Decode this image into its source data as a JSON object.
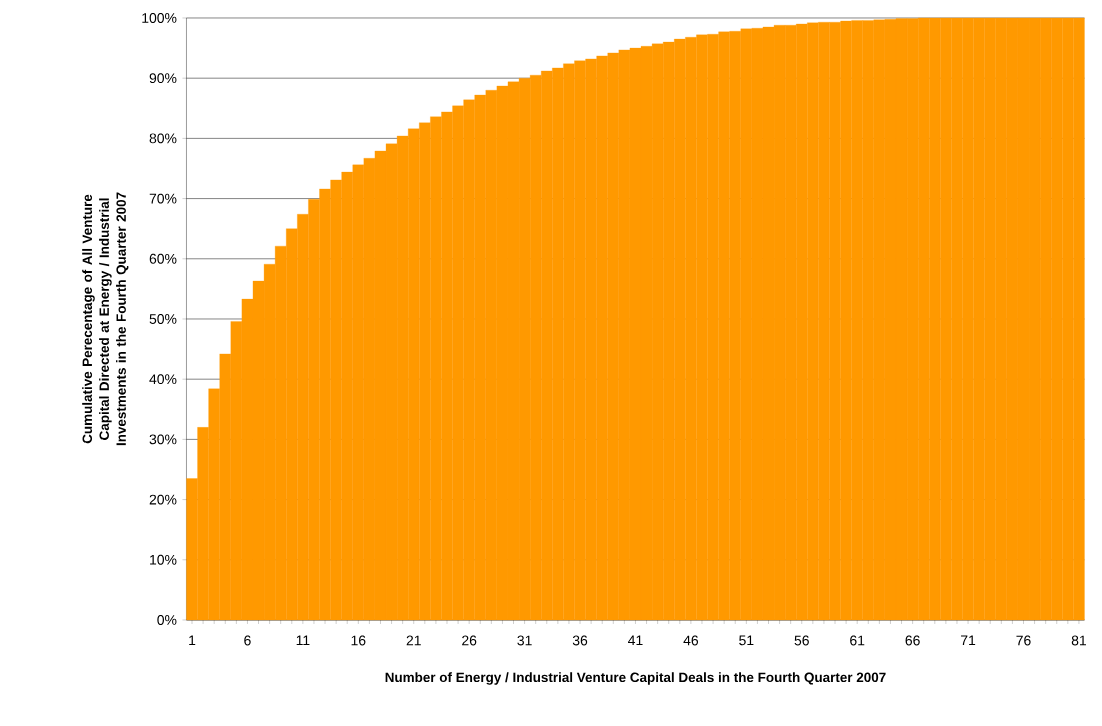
{
  "chart_data": {
    "type": "bar",
    "xlabel": "Number of Energy / Industrial Venture Capital Deals in the Fourth Quarter 2007",
    "ylabel": "Cumulative Perecentage of All Venture Capital Directed at Energy / Industrial Investments in the Fourth Quarter 2007",
    "categories": [
      "1",
      null,
      null,
      null,
      null,
      "6",
      null,
      null,
      null,
      null,
      "11",
      null,
      null,
      null,
      null,
      "16",
      null,
      null,
      null,
      null,
      "21",
      null,
      null,
      null,
      null,
      "26",
      null,
      null,
      null,
      null,
      "31",
      null,
      null,
      null,
      null,
      "36",
      null,
      null,
      null,
      null,
      "41",
      null,
      null,
      null,
      null,
      "46",
      null,
      null,
      null,
      null,
      "51",
      null,
      null,
      null,
      null,
      "56",
      null,
      null,
      null,
      null,
      "61",
      null,
      null,
      null,
      null,
      "66",
      null,
      null,
      null,
      null,
      "71",
      null,
      null,
      null,
      null,
      "76",
      null,
      null,
      null,
      null,
      "81"
    ],
    "values": [
      23.5,
      32.0,
      38.4,
      44.2,
      49.6,
      53.3,
      56.3,
      59.1,
      62.1,
      65.0,
      67.4,
      69.9,
      71.6,
      73.1,
      74.4,
      75.6,
      76.7,
      77.9,
      79.1,
      80.4,
      81.6,
      82.6,
      83.6,
      84.4,
      85.4,
      86.4,
      87.2,
      88.0,
      88.7,
      89.4,
      90.0,
      90.5,
      91.2,
      91.7,
      92.4,
      92.9,
      93.2,
      93.7,
      94.2,
      94.7,
      95.0,
      95.3,
      95.7,
      96.0,
      96.5,
      96.8,
      97.2,
      97.3,
      97.7,
      97.8,
      98.2,
      98.3,
      98.5,
      98.8,
      98.8,
      99.0,
      99.2,
      99.3,
      99.3,
      99.5,
      99.6,
      99.6,
      99.7,
      99.8,
      99.9,
      99.9,
      100,
      100,
      100,
      100,
      100,
      100,
      100,
      100,
      100,
      100,
      100,
      100,
      100,
      100,
      100
    ],
    "color": "#ff9900",
    "ylim": [
      0,
      100
    ],
    "yticks": [
      {
        "value": 0,
        "label": "0%"
      },
      {
        "value": 10,
        "label": "10%"
      },
      {
        "value": 20,
        "label": "20%"
      },
      {
        "value": 30,
        "label": "30%"
      },
      {
        "value": 40,
        "label": "40%"
      },
      {
        "value": 50,
        "label": "50%"
      },
      {
        "value": 60,
        "label": "60%"
      },
      {
        "value": 70,
        "label": "70%"
      },
      {
        "value": 80,
        "label": "80%"
      },
      {
        "value": 90,
        "label": "90%"
      },
      {
        "value": 100,
        "label": "100%"
      }
    ],
    "grid": "y"
  }
}
